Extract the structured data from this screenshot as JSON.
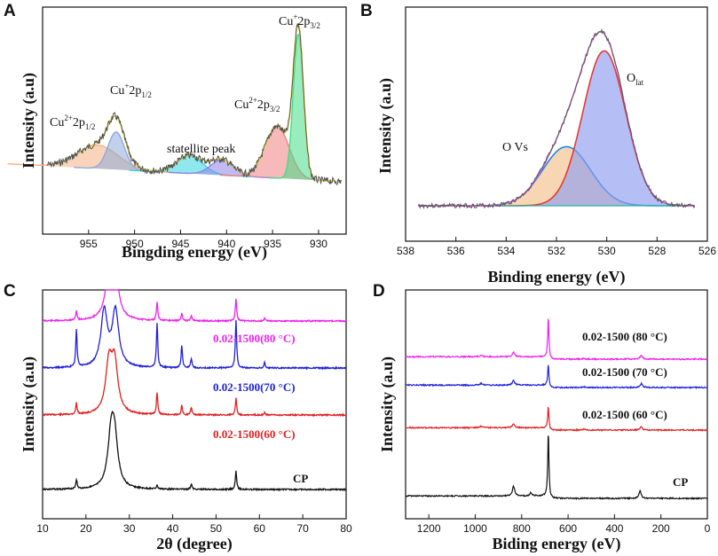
{
  "colors": {
    "axis": "#111111",
    "raw": "#555555",
    "cu2_p12": "#f4b183",
    "cu1_p12": "#8eaadb",
    "satellite1": "#33d6e0",
    "satellite2": "#8f84e8",
    "cu2_p32": "#f08080",
    "cu1_p32": "#44dd88",
    "envelope": "#e8d84a",
    "ovs": "#f6c08a",
    "olat": "#8f9cf0",
    "ovs_line": "#1e88e5",
    "olat_line": "#e53935",
    "fit_line": "#d45fd6",
    "baseline": "#20b2aa",
    "s80": "#ee22ee",
    "s70": "#2020dd",
    "s60": "#e02020",
    "cp": "#111111"
  },
  "chart_data": [
    {
      "panel": "A",
      "type": "line",
      "xlabel": "Bingding energy (eV)",
      "ylabel": "Intensity (a.u)",
      "xlim": [
        960,
        927
      ],
      "xticks": [
        955,
        950,
        945,
        940,
        935,
        930
      ],
      "peaks": [
        {
          "label": "Cu",
          "sup": "2+",
          "rest": "2p",
          "sub": "1/2",
          "center": 954.0,
          "height": 0.55,
          "width": 2.2,
          "color_key": "cu2_p12"
        },
        {
          "label": "Cu",
          "sup": "+",
          "rest": "2p",
          "sub": "1/2",
          "center": 952.0,
          "height": 0.88,
          "width": 0.9,
          "color_key": "cu1_p12"
        },
        {
          "label": "statellite peak",
          "sup": "",
          "rest": "",
          "sub": "",
          "center": 944.0,
          "height": 0.42,
          "width": 1.4,
          "color_key": "satellite1"
        },
        {
          "label": "",
          "sup": "",
          "rest": "",
          "sub": "",
          "center": 940.5,
          "height": 0.36,
          "width": 1.2,
          "color_key": "satellite2"
        },
        {
          "label": "Cu",
          "sup": "2+",
          "rest": "2p",
          "sub": "3/2",
          "center": 934.5,
          "height": 1.22,
          "width": 1.3,
          "color_key": "cu2_p32"
        },
        {
          "label": "Cu",
          "sup": "+",
          "rest": "2p",
          "sub": "3/2",
          "center": 932.2,
          "height": 3.4,
          "width": 0.55,
          "color_key": "cu1_p32"
        }
      ],
      "raw": {
        "x": [
          959,
          957,
          955,
          954,
          953,
          952,
          951,
          950,
          948,
          946,
          944,
          942,
          940.5,
          939,
          937,
          935,
          934,
          933,
          932.2,
          931.3,
          930,
          928
        ],
        "y": [
          1.2,
          1.35,
          1.4,
          1.55,
          1.6,
          2.2,
          1.3,
          0.9,
          0.75,
          0.82,
          1.0,
          0.72,
          0.8,
          0.55,
          0.8,
          1.65,
          1.75,
          1.45,
          3.5,
          0.8,
          0.15,
          0.1
        ]
      }
    },
    {
      "panel": "B",
      "type": "line",
      "xlabel": "Binding energy (eV)",
      "ylabel": "Intensity (a.u)",
      "xlim": [
        538,
        526
      ],
      "xticks": [
        538,
        536,
        534,
        532,
        530,
        528,
        526
      ],
      "peaks": [
        {
          "label": "O Vs",
          "sub": "",
          "center": 531.6,
          "height": 0.37,
          "width": 0.95,
          "color_key": "ovs"
        },
        {
          "label": "O",
          "sub": "lat",
          "center": 530.1,
          "height": 0.97,
          "width": 0.85,
          "color_key": "olat"
        }
      ],
      "raw": {
        "x": [
          537.5,
          535,
          534,
          533,
          532,
          531.5,
          531,
          530.5,
          530.2,
          529.8,
          529.3,
          528.8,
          528,
          527,
          526.5
        ],
        "y": [
          0.01,
          0.02,
          0.06,
          0.2,
          0.45,
          0.65,
          0.88,
          1.02,
          1.07,
          1.05,
          0.9,
          0.55,
          0.15,
          0.03,
          0.01
        ]
      }
    },
    {
      "panel": "C",
      "type": "line",
      "xlabel": "2θ (degree)",
      "ylabel": "Intensity (a.u)",
      "xlim": [
        10,
        80
      ],
      "xticks": [
        10,
        20,
        30,
        40,
        50,
        60,
        70,
        80
      ],
      "series": [
        {
          "name": "0.02-1500(80 °C)",
          "color_key": "s80",
          "peaks": [
            [
              17.8,
              0.25
            ],
            [
              25.5,
              1.4
            ],
            [
              26.5,
              1.4
            ],
            [
              36.4,
              0.5
            ],
            [
              42.1,
              0.2
            ],
            [
              44.3,
              0.15
            ],
            [
              54.6,
              0.6
            ],
            [
              61.2,
              0.08
            ]
          ]
        },
        {
          "name": "0.02-1500(70 °C)",
          "color_key": "s70",
          "peaks": [
            [
              17.8,
              1.0
            ],
            [
              24.2,
              1.5
            ],
            [
              26.8,
              1.5
            ],
            [
              36.4,
              1.2
            ],
            [
              42.1,
              0.6
            ],
            [
              44.3,
              0.25
            ],
            [
              54.6,
              1.3
            ],
            [
              61.2,
              0.15
            ]
          ]
        },
        {
          "name": "0.02-1500(60 °C)",
          "color_key": "s60",
          "peaks": [
            [
              17.8,
              0.3
            ],
            [
              25.3,
              1.3
            ],
            [
              26.6,
              1.3
            ],
            [
              36.4,
              0.6
            ],
            [
              42.1,
              0.25
            ],
            [
              44.3,
              0.2
            ],
            [
              54.6,
              0.45
            ],
            [
              61.2,
              0.06
            ]
          ]
        },
        {
          "name": "CP",
          "color_key": "cp",
          "peaks": [
            [
              17.8,
              0.25
            ],
            [
              25.8,
              1.3
            ],
            [
              26.6,
              1.2
            ],
            [
              36.4,
              0.1
            ],
            [
              44.3,
              0.15
            ],
            [
              54.6,
              0.5
            ]
          ]
        }
      ]
    },
    {
      "panel": "D",
      "type": "line",
      "xlabel": "Biding energy (eV)",
      "ylabel": "Intensity (a.u)",
      "xlim": [
        1300,
        0
      ],
      "xticks": [
        1200,
        1000,
        800,
        600,
        400,
        200,
        0
      ],
      "series": [
        {
          "name": "0.02-1500 (80 °C)",
          "color_key": "s80",
          "peaks": [
            [
              975,
              0.1
            ],
            [
              835,
              0.3
            ],
            [
              685,
              2.6
            ],
            [
              532,
              0.05
            ],
            [
              285,
              0.25
            ]
          ]
        },
        {
          "name": "0.02-1500 (70 °C)",
          "color_key": "s70",
          "peaks": [
            [
              975,
              0.1
            ],
            [
              835,
              0.3
            ],
            [
              685,
              1.4
            ],
            [
              532,
              0.05
            ],
            [
              285,
              0.25
            ]
          ]
        },
        {
          "name": "0.02-1500 (60 °C)",
          "color_key": "s60",
          "peaks": [
            [
              975,
              0.08
            ],
            [
              835,
              0.25
            ],
            [
              685,
              1.4
            ],
            [
              532,
              0.05
            ],
            [
              285,
              0.2
            ]
          ]
        },
        {
          "name": "CP",
          "color_key": "cp",
          "peaks": [
            [
              835,
              0.6
            ],
            [
              760,
              0.2
            ],
            [
              685,
              4.2
            ],
            [
              290,
              0.45
            ]
          ]
        }
      ]
    }
  ],
  "panels": {
    "a": {
      "letter": "A",
      "xlabel": "Bingding energy (eV)",
      "ylabel": "Intensity (a.u)",
      "ticks": [
        "955",
        "950",
        "945",
        "940",
        "935",
        "930"
      ],
      "labels": {
        "cu2p12_main": "Cu",
        "cu2p12_sup": "2+",
        "cu2p12_rest": "2p",
        "cu2p12_sub": "1/2",
        "cu1p12_main": "Cu",
        "cu1p12_sup": "+",
        "cu1p12_rest": "2p",
        "cu1p12_sub": "1/2",
        "satellite": "statellite peak",
        "cu2p32_main": "Cu",
        "cu2p32_sup": "2+",
        "cu2p32_rest": "2p",
        "cu2p32_sub": "3/2",
        "cu1p32_main": "Cu",
        "cu1p32_sup": "+",
        "cu1p32_rest": "2p",
        "cu1p32_sub": "3/2"
      }
    },
    "b": {
      "letter": "B",
      "xlabel": "Binding energy (eV)",
      "ylabel": "Intensity (a.u)",
      "ticks": [
        "538",
        "536",
        "534",
        "532",
        "530",
        "528",
        "526"
      ],
      "labels": {
        "ovs": "O Vs",
        "olat_main": "O",
        "olat_sub": "lat"
      }
    },
    "c": {
      "letter": "C",
      "xlabel": "2θ (degree)",
      "ylabel": "Intensity (a.u)",
      "ticks": [
        "10",
        "20",
        "30",
        "40",
        "50",
        "60",
        "70",
        "80"
      ],
      "labels": {
        "s80": "0.02-1500(80 °C)",
        "s70": "0.02-1500(70 °C)",
        "s60": "0.02-1500(60 °C)",
        "cp": "CP"
      }
    },
    "d": {
      "letter": "D",
      "xlabel": "Biding energy (eV)",
      "ylabel": "Intensity (a.u)",
      "ticks": [
        "1200",
        "1000",
        "800",
        "600",
        "400",
        "200",
        "0"
      ],
      "labels": {
        "s80": "0.02-1500 (80 °C)",
        "s70": "0.02-1500 (70 °C)",
        "s60": "0.02-1500 (60 °C)",
        "cp": "CP"
      }
    }
  }
}
